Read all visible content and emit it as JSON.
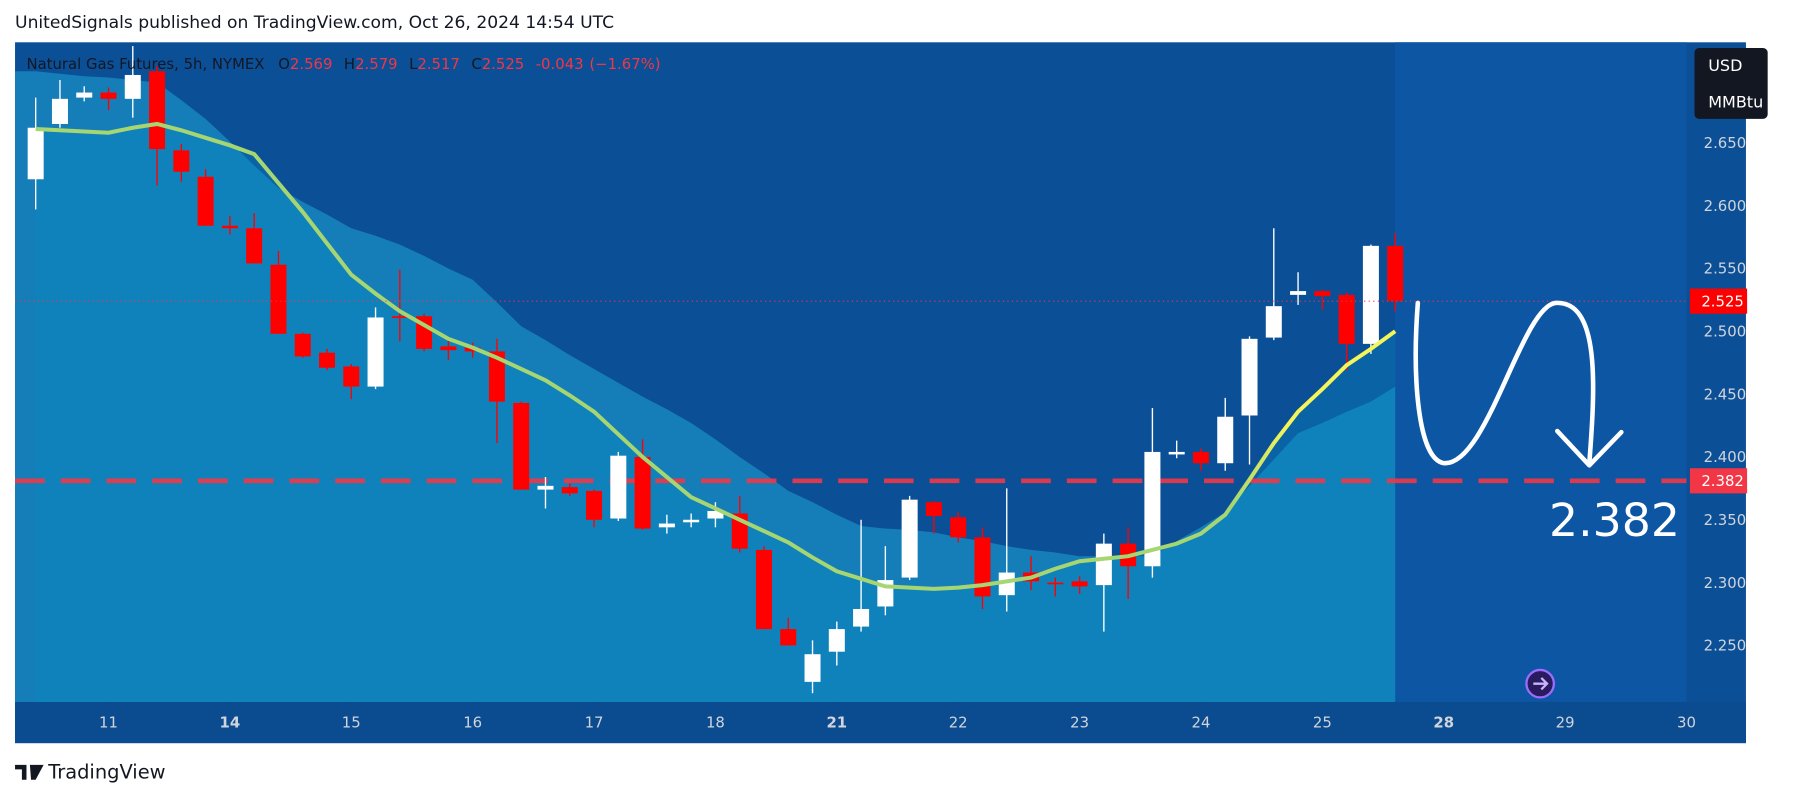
{
  "header": {
    "title": "UnitedSignals published on TradingView.com, Oct 26, 2024 14:54 UTC"
  },
  "footer": {
    "brand": "TradingView"
  },
  "chart_data": {
    "type": "candlestick",
    "title": "Natural Gas Futures, 5h, NYMEX",
    "ohlc_letters": [
      "O",
      "H",
      "L",
      "C"
    ],
    "change": -0.043,
    "change_pct": {
      "value": -1.67,
      "label": "(−1.67%)"
    },
    "currency": [
      "USD",
      "MMBtu"
    ],
    "up_color": "#ffffff",
    "down_color": "#ff0000",
    "x": [
      0,
      1,
      2,
      3,
      4,
      5,
      6,
      7,
      8,
      9,
      10,
      11,
      12,
      13,
      14,
      15,
      16,
      17,
      18,
      19,
      20,
      21,
      22,
      23,
      24,
      25,
      26,
      27,
      28,
      29,
      30,
      31,
      32,
      33,
      34,
      35,
      36,
      37,
      38,
      39,
      40,
      41,
      42,
      43,
      44,
      45,
      46,
      47,
      48,
      49,
      50,
      51,
      52,
      53,
      54,
      55,
      56
    ],
    "open": [
      2.622,
      2.666,
      2.687,
      2.691,
      2.686,
      2.708,
      2.645,
      2.624,
      2.585,
      2.583,
      2.554,
      2.499,
      2.484,
      2.473,
      2.457,
      2.513,
      2.513,
      2.489,
      2.488,
      2.485,
      2.444,
      2.375,
      2.377,
      2.374,
      2.352,
      2.401,
      2.345,
      2.349,
      2.352,
      2.356,
      2.327,
      2.264,
      2.222,
      2.246,
      2.266,
      2.282,
      2.305,
      2.365,
      2.353,
      2.337,
      2.291,
      2.309,
      2.301,
      2.302,
      2.299,
      2.332,
      2.314,
      2.403,
      2.405,
      2.396,
      2.434,
      2.496,
      2.53,
      2.533,
      2.53,
      2.491,
      2.569
    ],
    "high": [
      2.687,
      2.701,
      2.696,
      2.695,
      2.728,
      2.712,
      2.65,
      2.63,
      2.593,
      2.595,
      2.565,
      2.5,
      2.487,
      2.475,
      2.52,
      2.55,
      2.515,
      2.495,
      2.492,
      2.495,
      2.445,
      2.385,
      2.38,
      2.375,
      2.405,
      2.415,
      2.355,
      2.356,
      2.365,
      2.37,
      2.33,
      2.273,
      2.255,
      2.27,
      2.351,
      2.33,
      2.37,
      2.366,
      2.357,
      2.345,
      2.376,
      2.322,
      2.305,
      2.306,
      2.34,
      2.345,
      2.44,
      2.414,
      2.408,
      2.448,
      2.497,
      2.583,
      2.548,
      2.534,
      2.532,
      2.57,
      2.579
    ],
    "low": [
      2.598,
      2.663,
      2.684,
      2.677,
      2.671,
      2.617,
      2.62,
      2.585,
      2.578,
      2.555,
      2.499,
      2.48,
      2.47,
      2.447,
      2.455,
      2.493,
      2.485,
      2.478,
      2.48,
      2.412,
      2.375,
      2.36,
      2.37,
      2.345,
      2.35,
      2.343,
      2.34,
      2.345,
      2.345,
      2.325,
      2.264,
      2.251,
      2.213,
      2.235,
      2.262,
      2.275,
      2.303,
      2.34,
      2.333,
      2.28,
      2.278,
      2.295,
      2.29,
      2.292,
      2.262,
      2.288,
      2.305,
      2.4,
      2.39,
      2.39,
      2.395,
      2.494,
      2.522,
      2.518,
      2.47,
      2.483,
      2.517
    ],
    "close": [
      2.663,
      2.686,
      2.691,
      2.686,
      2.705,
      2.646,
      2.628,
      2.585,
      2.583,
      2.555,
      2.499,
      2.481,
      2.472,
      2.457,
      2.512,
      2.512,
      2.487,
      2.486,
      2.485,
      2.445,
      2.375,
      2.378,
      2.372,
      2.351,
      2.402,
      2.344,
      2.348,
      2.351,
      2.358,
      2.328,
      2.264,
      2.251,
      2.244,
      2.264,
      2.28,
      2.303,
      2.367,
      2.354,
      2.337,
      2.29,
      2.309,
      2.302,
      2.3,
      2.298,
      2.332,
      2.314,
      2.405,
      2.405,
      2.396,
      2.433,
      2.495,
      2.521,
      2.533,
      2.529,
      2.491,
      2.569,
      2.525
    ],
    "ma": {
      "color": "#a6d672",
      "values": [
        2.662,
        2.661,
        2.66,
        2.659,
        2.663,
        2.666,
        2.661,
        2.655,
        2.649,
        2.642,
        2.619,
        2.596,
        2.571,
        2.546,
        2.531,
        2.517,
        2.506,
        2.495,
        2.488,
        2.48,
        2.471,
        2.462,
        2.45,
        2.437,
        2.419,
        2.401,
        2.385,
        2.369,
        2.36,
        2.351,
        2.342,
        2.333,
        2.321,
        2.31,
        2.304,
        2.298,
        2.297,
        2.296,
        2.297,
        2.299,
        2.302,
        2.305,
        2.312,
        2.318,
        2.32,
        2.322,
        2.327,
        2.332,
        2.34,
        2.355,
        2.383,
        2.412,
        2.437,
        2.455,
        2.474,
        2.487,
        2.501
      ]
    },
    "band_upper": {
      "color": "#1786bd",
      "values": [
        2.708,
        2.706,
        2.704,
        2.703,
        2.701,
        2.699,
        2.685,
        2.67,
        2.652,
        2.633,
        2.615,
        2.604,
        2.594,
        2.583,
        2.577,
        2.57,
        2.561,
        2.551,
        2.542,
        2.524,
        2.505,
        2.494,
        2.482,
        2.471,
        2.46,
        2.449,
        2.439,
        2.428,
        2.415,
        2.401,
        2.388,
        2.374,
        2.365,
        2.355,
        2.346,
        2.344,
        2.343,
        2.341,
        2.337,
        2.334,
        2.33,
        2.327,
        2.325,
        2.322,
        2.322,
        2.322,
        2.322,
        2.334,
        2.345,
        2.357,
        2.378,
        2.399,
        2.42,
        2.428,
        2.437,
        2.445,
        2.457
      ]
    },
    "level": 2.382,
    "level_color": "#f23645",
    "xlim": [
      -0.85,
      68
    ],
    "ylim": [
      2.206,
      2.731
    ],
    "xticks": [
      {
        "value": 3,
        "label": "11"
      },
      {
        "value": 8,
        "label": "14",
        "bold": true
      },
      {
        "value": 13,
        "label": "15"
      },
      {
        "value": 18,
        "label": "16"
      },
      {
        "value": 23,
        "label": "17"
      },
      {
        "value": 28,
        "label": "18"
      },
      {
        "value": 33,
        "label": "21",
        "bold": true
      },
      {
        "value": 38,
        "label": "22"
      },
      {
        "value": 43,
        "label": "23"
      },
      {
        "value": 48,
        "label": "24"
      },
      {
        "value": 53,
        "label": "25"
      },
      {
        "value": 58,
        "label": "28",
        "bold": true
      },
      {
        "value": 63,
        "label": "29"
      },
      {
        "value": 68,
        "label": "30"
      }
    ],
    "yticks": [
      {
        "value": 2.25,
        "label": "2.250"
      },
      {
        "value": 2.3,
        "label": "2.300"
      },
      {
        "value": 2.35,
        "label": "2.350"
      },
      {
        "value": 2.4,
        "label": "2.400"
      },
      {
        "value": 2.45,
        "label": "2.450"
      },
      {
        "value": 2.5,
        "label": "2.500"
      },
      {
        "value": 2.55,
        "label": "2.550"
      },
      {
        "value": 2.6,
        "label": "2.600"
      },
      {
        "value": 2.65,
        "label": "2.650"
      }
    ],
    "grid": false
  }
}
